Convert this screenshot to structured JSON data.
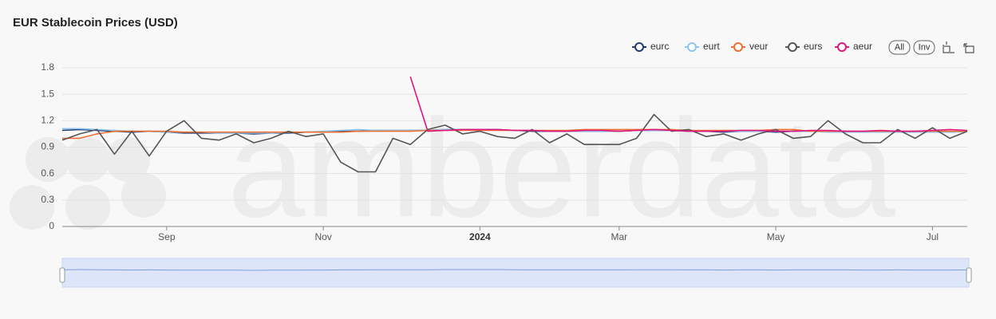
{
  "chart_data": {
    "type": "line",
    "title": "EUR Stablecoin Prices (USD)",
    "watermark": "amberdata",
    "buttons": [
      "All",
      "Inv"
    ],
    "categories": [
      null,
      null,
      null,
      null,
      null,
      null,
      "Sep",
      null,
      null,
      null,
      null,
      null,
      null,
      null,
      null,
      "Nov",
      null,
      null,
      null,
      null,
      null,
      null,
      null,
      null,
      "2024",
      null,
      null,
      null,
      null,
      null,
      null,
      null,
      "Mar",
      null,
      null,
      null,
      null,
      null,
      null,
      null,
      null,
      "May",
      null,
      null,
      null,
      null,
      null,
      null,
      null,
      null,
      "Jul",
      null,
      null
    ],
    "ylim": [
      0,
      1.8
    ],
    "yticks": [
      0,
      0.3,
      0.6,
      0.9,
      1.2,
      1.5,
      1.8
    ],
    "grid": true,
    "legend": "top-right",
    "series": [
      {
        "name": "eurc",
        "color": "#1f3b73",
        "values": [
          1.09,
          1.1,
          1.09,
          1.08,
          1.07,
          1.08,
          1.07,
          1.06,
          1.06,
          1.06,
          1.06,
          1.05,
          1.06,
          1.06,
          1.07,
          1.07,
          1.08,
          1.08,
          1.09,
          1.09,
          1.09,
          1.09,
          1.1,
          1.1,
          1.1,
          1.1,
          1.09,
          1.08,
          1.08,
          1.08,
          1.08,
          1.08,
          1.08,
          1.09,
          1.09,
          1.09,
          1.08,
          1.08,
          1.07,
          1.08,
          1.08,
          1.07,
          1.08,
          1.08,
          1.08,
          1.08,
          1.07,
          1.07,
          1.08,
          1.07,
          1.07,
          1.07,
          1.08
        ]
      },
      {
        "name": "eurt",
        "color": "#8ec5f0",
        "values": [
          1.11,
          1.11,
          1.1,
          1.09,
          1.08,
          1.08,
          1.07,
          1.07,
          1.07,
          1.06,
          1.06,
          1.06,
          1.06,
          1.07,
          1.07,
          1.08,
          1.09,
          1.1,
          1.09,
          1.09,
          1.09,
          1.09,
          1.1,
          1.1,
          1.1,
          1.1,
          1.09,
          1.09,
          1.08,
          1.08,
          1.08,
          1.08,
          1.08,
          1.09,
          1.09,
          1.09,
          1.08,
          1.08,
          1.08,
          1.08,
          1.08,
          1.08,
          1.08,
          1.08,
          1.07,
          1.07,
          1.07,
          1.07,
          1.07,
          1.07,
          1.07,
          1.07,
          1.08
        ]
      },
      {
        "name": "veur",
        "color": "#f07030",
        "values": [
          1.0,
          1.0,
          1.05,
          1.08,
          1.08,
          1.08,
          1.08,
          1.07,
          1.07,
          1.07,
          1.07,
          1.07,
          1.07,
          1.07,
          1.07,
          1.07,
          1.07,
          1.08,
          1.08,
          1.08,
          1.08,
          1.09,
          1.09,
          1.09,
          1.09,
          1.09,
          1.09,
          1.09,
          1.09,
          1.09,
          1.1,
          1.1,
          1.1,
          1.1,
          1.1,
          1.1,
          1.09,
          1.09,
          1.09,
          1.09,
          1.09,
          1.1,
          1.1,
          1.08,
          1.08,
          1.08,
          1.08,
          1.08,
          1.08,
          1.08,
          1.08,
          1.08,
          1.08
        ]
      },
      {
        "name": "eurs",
        "color": "#555555",
        "values": [
          0.98,
          1.05,
          1.1,
          0.82,
          1.08,
          0.8,
          1.08,
          1.2,
          1.0,
          0.98,
          1.05,
          0.95,
          1.0,
          1.08,
          1.02,
          1.05,
          0.73,
          0.62,
          0.62,
          1.0,
          0.93,
          1.1,
          1.15,
          1.05,
          1.08,
          1.02,
          1.0,
          1.1,
          0.95,
          1.05,
          0.93,
          0.93,
          0.93,
          1.0,
          1.27,
          1.08,
          1.1,
          1.02,
          1.05,
          0.98,
          1.05,
          1.1,
          1.0,
          1.02,
          1.2,
          1.05,
          0.95,
          0.95,
          1.1,
          1.0,
          1.12,
          1.0,
          1.08
        ]
      },
      {
        "name": "aeur",
        "color": "#e0157f",
        "values": [
          null,
          null,
          null,
          null,
          null,
          null,
          null,
          null,
          null,
          null,
          null,
          null,
          null,
          null,
          null,
          null,
          null,
          null,
          null,
          null,
          1.7,
          1.08,
          1.09,
          1.1,
          1.1,
          1.1,
          1.09,
          1.09,
          1.08,
          1.08,
          1.09,
          1.09,
          1.08,
          1.09,
          1.1,
          1.09,
          1.08,
          1.08,
          1.08,
          1.09,
          1.09,
          1.08,
          1.08,
          1.09,
          1.09,
          1.08,
          1.08,
          1.09,
          1.08,
          1.08,
          1.09,
          1.1,
          1.09
        ]
      }
    ]
  }
}
